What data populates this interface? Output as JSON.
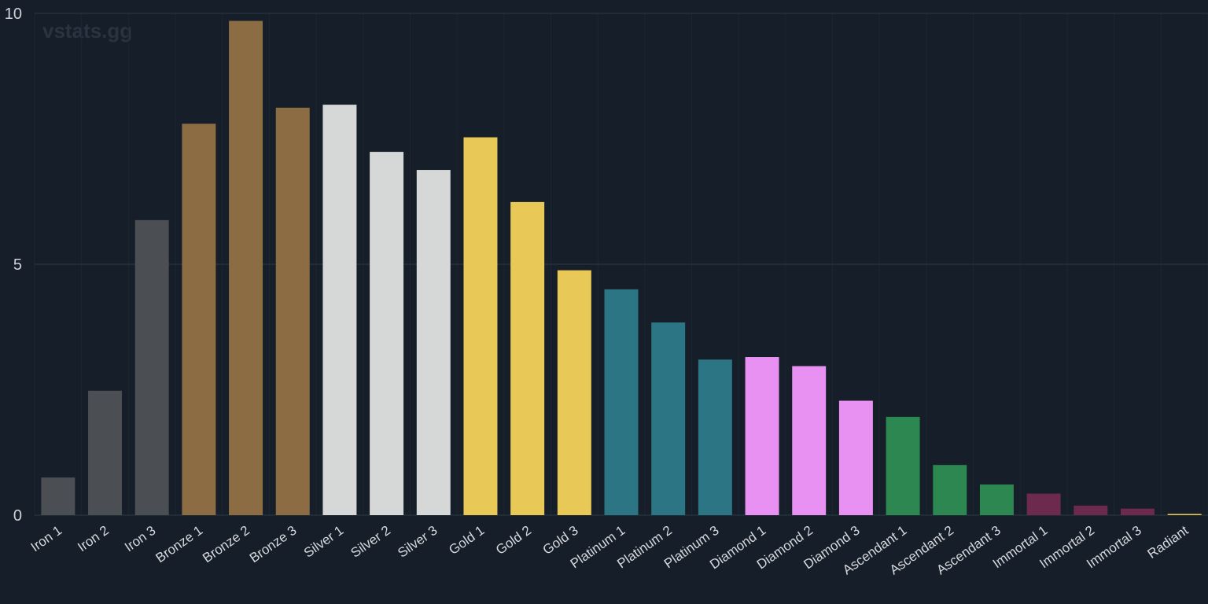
{
  "watermark": "vstats.gg",
  "chart_data": {
    "type": "bar",
    "title": "",
    "xlabel": "",
    "ylabel": "",
    "ylim": [
      0,
      10
    ],
    "yticks": [
      0,
      5,
      10
    ],
    "grid": true,
    "legend": "none",
    "categories": [
      "Iron 1",
      "Iron 2",
      "Iron 3",
      "Bronze 1",
      "Bronze 2",
      "Bronze 3",
      "Silver 1",
      "Silver 2",
      "Silver 3",
      "Gold 1",
      "Gold 2",
      "Gold 3",
      "Platinum 1",
      "Platinum 2",
      "Platinum 3",
      "Diamond 1",
      "Diamond 2",
      "Diamond 3",
      "Ascendant 1",
      "Ascendant 2",
      "Ascendant 3",
      "Immortal 1",
      "Immortal 2",
      "Immortal 3",
      "Radiant"
    ],
    "values": [
      0.75,
      2.48,
      5.88,
      7.8,
      9.85,
      8.12,
      8.18,
      7.24,
      6.88,
      7.53,
      6.24,
      4.88,
      4.5,
      3.84,
      3.1,
      3.15,
      2.97,
      2.28,
      1.96,
      1.0,
      0.61,
      0.43,
      0.19,
      0.13,
      0.02
    ],
    "colors": [
      "#4b4e53",
      "#4b4e53",
      "#4b4e53",
      "#8b6c43",
      "#8b6c43",
      "#8b6c43",
      "#d5d8d7",
      "#d5d8d7",
      "#d5d8d7",
      "#e8c957",
      "#e8c957",
      "#e8c957",
      "#2b7584",
      "#2b7584",
      "#2b7584",
      "#e891f2",
      "#e891f2",
      "#e891f2",
      "#2d8750",
      "#2d8750",
      "#2d8750",
      "#6b2a4e",
      "#6b2a4e",
      "#6b2a4e",
      "#e8c957"
    ]
  }
}
